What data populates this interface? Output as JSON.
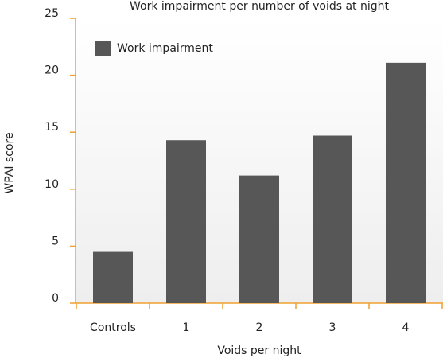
{
  "chart_data": {
    "type": "bar",
    "title": "Work impairment per number of voids at night",
    "x_label": "Voids per night",
    "y_label": "WPAI score",
    "categories": [
      "Controls",
      "1",
      "2",
      "3",
      "4"
    ],
    "series": [
      {
        "name": "Work impairment",
        "color": "#575757",
        "values": [
          4.5,
          14.3,
          11.2,
          14.7,
          21.1
        ]
      }
    ],
    "ylim": [
      0,
      25
    ],
    "yticks": [
      0,
      5,
      10,
      15,
      20,
      25
    ],
    "legend": "upper left"
  }
}
